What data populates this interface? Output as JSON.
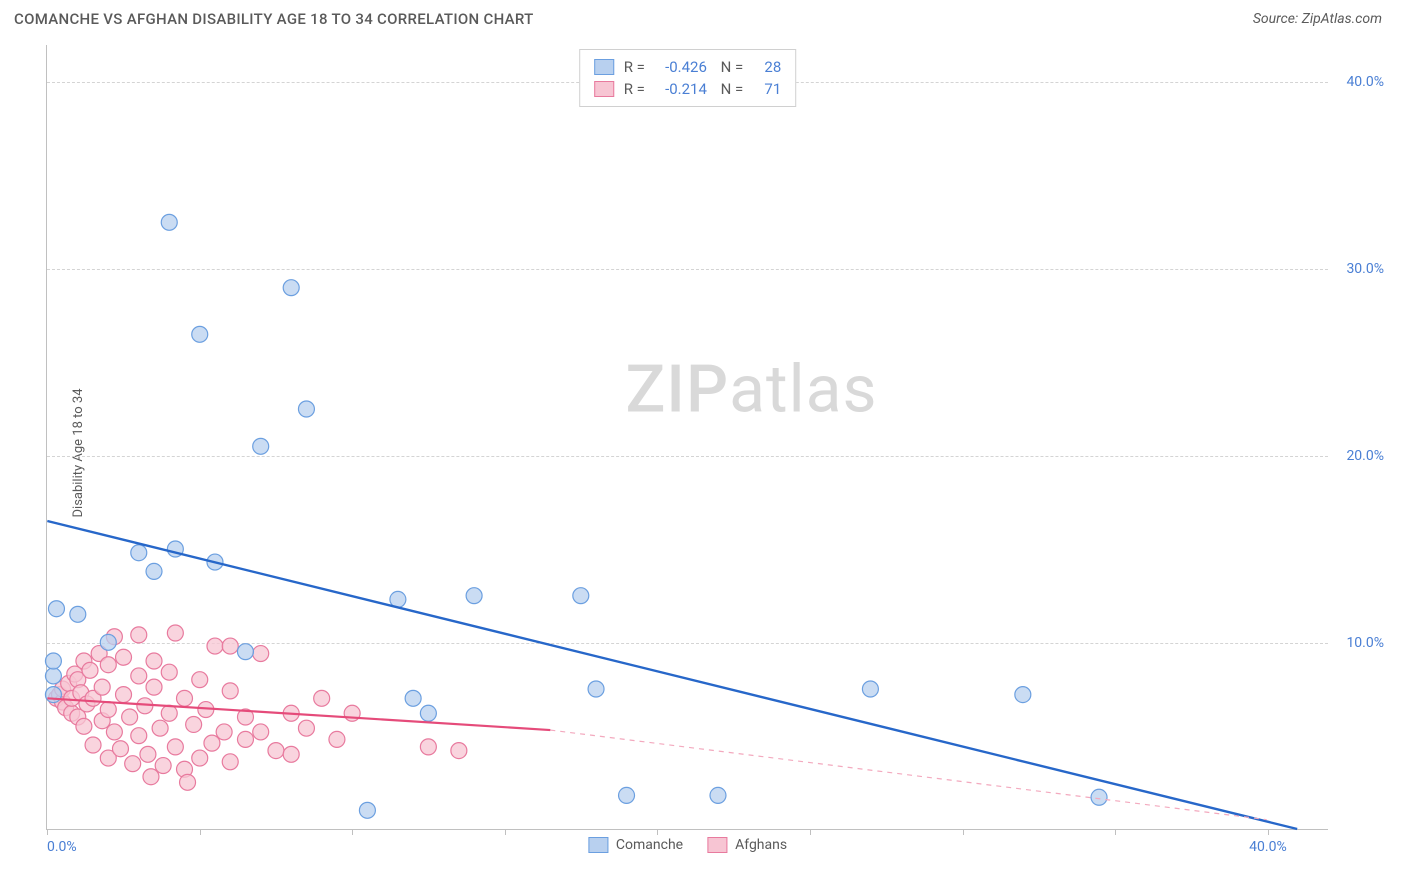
{
  "header": {
    "title": "COMANCHE VS AFGHAN DISABILITY AGE 18 TO 34 CORRELATION CHART",
    "source": "Source: ZipAtlas.com"
  },
  "chart": {
    "type": "scatter",
    "y_axis_title": "Disability Age 18 to 34",
    "xlim": [
      0,
      42
    ],
    "ylim": [
      0,
      42
    ],
    "y_ticks": [
      10,
      20,
      30,
      40
    ],
    "y_tick_labels": [
      "10.0%",
      "20.0%",
      "30.0%",
      "40.0%"
    ],
    "x_ticks": [
      0,
      5,
      10,
      15,
      20,
      25,
      30,
      35,
      40
    ],
    "x_tick_labels": {
      "0": "0.0%",
      "40": "40.0%"
    },
    "grid_color": "#d4d4d4",
    "background": "#ffffff",
    "watermark": "ZIPatlas",
    "watermark_color": "#d9d9d9",
    "marker_radius": 8,
    "marker_stroke_width": 1.2,
    "series": [
      {
        "name": "Comanche",
        "color_fill": "#b8d0ef",
        "color_stroke": "#6b9fe0",
        "r": "-0.426",
        "n": "28",
        "trend": {
          "x1": 0,
          "y1": 16.5,
          "x2": 41,
          "y2": 0,
          "color": "#2767c9",
          "width": 2.4
        },
        "points": [
          [
            0.2,
            7.2
          ],
          [
            0.2,
            8.2
          ],
          [
            0.2,
            9.0
          ],
          [
            0.3,
            11.8
          ],
          [
            1.0,
            11.5
          ],
          [
            2.0,
            10.0
          ],
          [
            3.0,
            14.8
          ],
          [
            3.5,
            13.8
          ],
          [
            4.0,
            32.5
          ],
          [
            4.2,
            15.0
          ],
          [
            5.0,
            26.5
          ],
          [
            5.5,
            14.3
          ],
          [
            6.5,
            9.5
          ],
          [
            7.0,
            20.5
          ],
          [
            8.0,
            29.0
          ],
          [
            8.5,
            22.5
          ],
          [
            10.5,
            1.0
          ],
          [
            11.5,
            12.3
          ],
          [
            12.0,
            7.0
          ],
          [
            12.5,
            6.2
          ],
          [
            14.0,
            12.5
          ],
          [
            17.5,
            12.5
          ],
          [
            18.0,
            7.5
          ],
          [
            19.0,
            1.8
          ],
          [
            22.0,
            1.8
          ],
          [
            27.0,
            7.5
          ],
          [
            32.0,
            7.2
          ],
          [
            34.5,
            1.7
          ]
        ]
      },
      {
        "name": "Afghans",
        "color_fill": "#f7c5d3",
        "color_stroke": "#e87a9e",
        "r": "-0.214",
        "n": "71",
        "trend": {
          "x1": 0,
          "y1": 7.0,
          "x2": 16.5,
          "y2": 5.3,
          "color": "#e54b7a",
          "width": 2.2
        },
        "trend_dash": {
          "x1": 16.5,
          "y1": 5.3,
          "x2": 40,
          "y2": 0.5,
          "color": "#f3a9be",
          "width": 1.2
        },
        "points": [
          [
            0.3,
            7.0
          ],
          [
            0.4,
            7.2
          ],
          [
            0.5,
            6.8
          ],
          [
            0.5,
            7.5
          ],
          [
            0.6,
            6.5
          ],
          [
            0.7,
            7.8
          ],
          [
            0.8,
            6.2
          ],
          [
            0.8,
            7.0
          ],
          [
            0.9,
            8.3
          ],
          [
            1.0,
            6.0
          ],
          [
            1.0,
            8.0
          ],
          [
            1.1,
            7.3
          ],
          [
            1.2,
            5.5
          ],
          [
            1.2,
            9.0
          ],
          [
            1.3,
            6.7
          ],
          [
            1.4,
            8.5
          ],
          [
            1.5,
            4.5
          ],
          [
            1.5,
            7.0
          ],
          [
            1.7,
            9.4
          ],
          [
            1.8,
            5.8
          ],
          [
            1.8,
            7.6
          ],
          [
            2.0,
            3.8
          ],
          [
            2.0,
            6.4
          ],
          [
            2.0,
            8.8
          ],
          [
            2.2,
            5.2
          ],
          [
            2.2,
            10.3
          ],
          [
            2.4,
            4.3
          ],
          [
            2.5,
            7.2
          ],
          [
            2.5,
            9.2
          ],
          [
            2.7,
            6.0
          ],
          [
            2.8,
            3.5
          ],
          [
            3.0,
            8.2
          ],
          [
            3.0,
            5.0
          ],
          [
            3.0,
            10.4
          ],
          [
            3.2,
            6.6
          ],
          [
            3.3,
            4.0
          ],
          [
            3.4,
            2.8
          ],
          [
            3.5,
            7.6
          ],
          [
            3.5,
            9.0
          ],
          [
            3.7,
            5.4
          ],
          [
            3.8,
            3.4
          ],
          [
            4.0,
            6.2
          ],
          [
            4.0,
            8.4
          ],
          [
            4.2,
            4.4
          ],
          [
            4.2,
            10.5
          ],
          [
            4.5,
            3.2
          ],
          [
            4.5,
            7.0
          ],
          [
            4.6,
            2.5
          ],
          [
            4.8,
            5.6
          ],
          [
            5.0,
            8.0
          ],
          [
            5.0,
            3.8
          ],
          [
            5.2,
            6.4
          ],
          [
            5.4,
            4.6
          ],
          [
            5.5,
            9.8
          ],
          [
            5.8,
            5.2
          ],
          [
            6.0,
            3.6
          ],
          [
            6.0,
            7.4
          ],
          [
            6.0,
            9.8
          ],
          [
            6.5,
            4.8
          ],
          [
            6.5,
            6.0
          ],
          [
            7.0,
            5.2
          ],
          [
            7.0,
            9.4
          ],
          [
            7.5,
            4.2
          ],
          [
            8.0,
            6.2
          ],
          [
            8.0,
            4.0
          ],
          [
            8.5,
            5.4
          ],
          [
            9.0,
            7.0
          ],
          [
            9.5,
            4.8
          ],
          [
            10.0,
            6.2
          ],
          [
            12.5,
            4.4
          ],
          [
            13.5,
            4.2
          ]
        ]
      }
    ],
    "legend_bottom": [
      {
        "label": "Comanche",
        "fill": "#b8d0ef",
        "stroke": "#6b9fe0"
      },
      {
        "label": "Afghans",
        "fill": "#f7c5d3",
        "stroke": "#e87a9e"
      }
    ]
  }
}
